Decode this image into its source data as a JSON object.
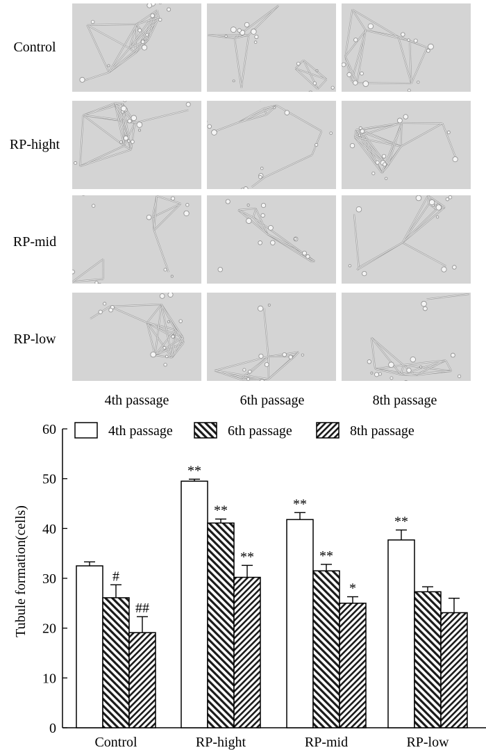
{
  "micrograph_grid": {
    "rows": [
      "Control",
      "RP-hight",
      "RP-mid",
      "RP-low"
    ],
    "columns": [
      "4th passage",
      "6th passage",
      "8th passage"
    ]
  },
  "chart_data": {
    "type": "bar",
    "ylabel": "Tubule formation(cells)",
    "xlabel": "",
    "ylim": [
      0,
      60
    ],
    "yticks": [
      0,
      10,
      20,
      30,
      40,
      50,
      60
    ],
    "categories": [
      "Control",
      "RP-hight",
      "RP-mid",
      "RP-low"
    ],
    "legend_position": "top",
    "series": [
      {
        "name": "4th passage",
        "pattern": "white",
        "values": [
          32.5,
          49.5,
          41.8,
          37.7
        ],
        "errors": [
          0.8,
          0.4,
          1.4,
          2.0
        ],
        "annotations": [
          "",
          "**",
          "**",
          "**"
        ]
      },
      {
        "name": "6th passage",
        "pattern": "diagonal-up",
        "values": [
          26.1,
          41.1,
          31.5,
          27.3
        ],
        "errors": [
          2.6,
          0.8,
          1.3,
          1.0
        ],
        "annotations": [
          "#",
          "**",
          "**",
          ""
        ]
      },
      {
        "name": "8th passage",
        "pattern": "diagonal-down",
        "values": [
          19.1,
          30.2,
          25.0,
          23.1
        ],
        "errors": [
          3.2,
          2.4,
          1.3,
          2.9
        ],
        "annotations": [
          "##",
          "**",
          "*",
          ""
        ]
      }
    ]
  }
}
